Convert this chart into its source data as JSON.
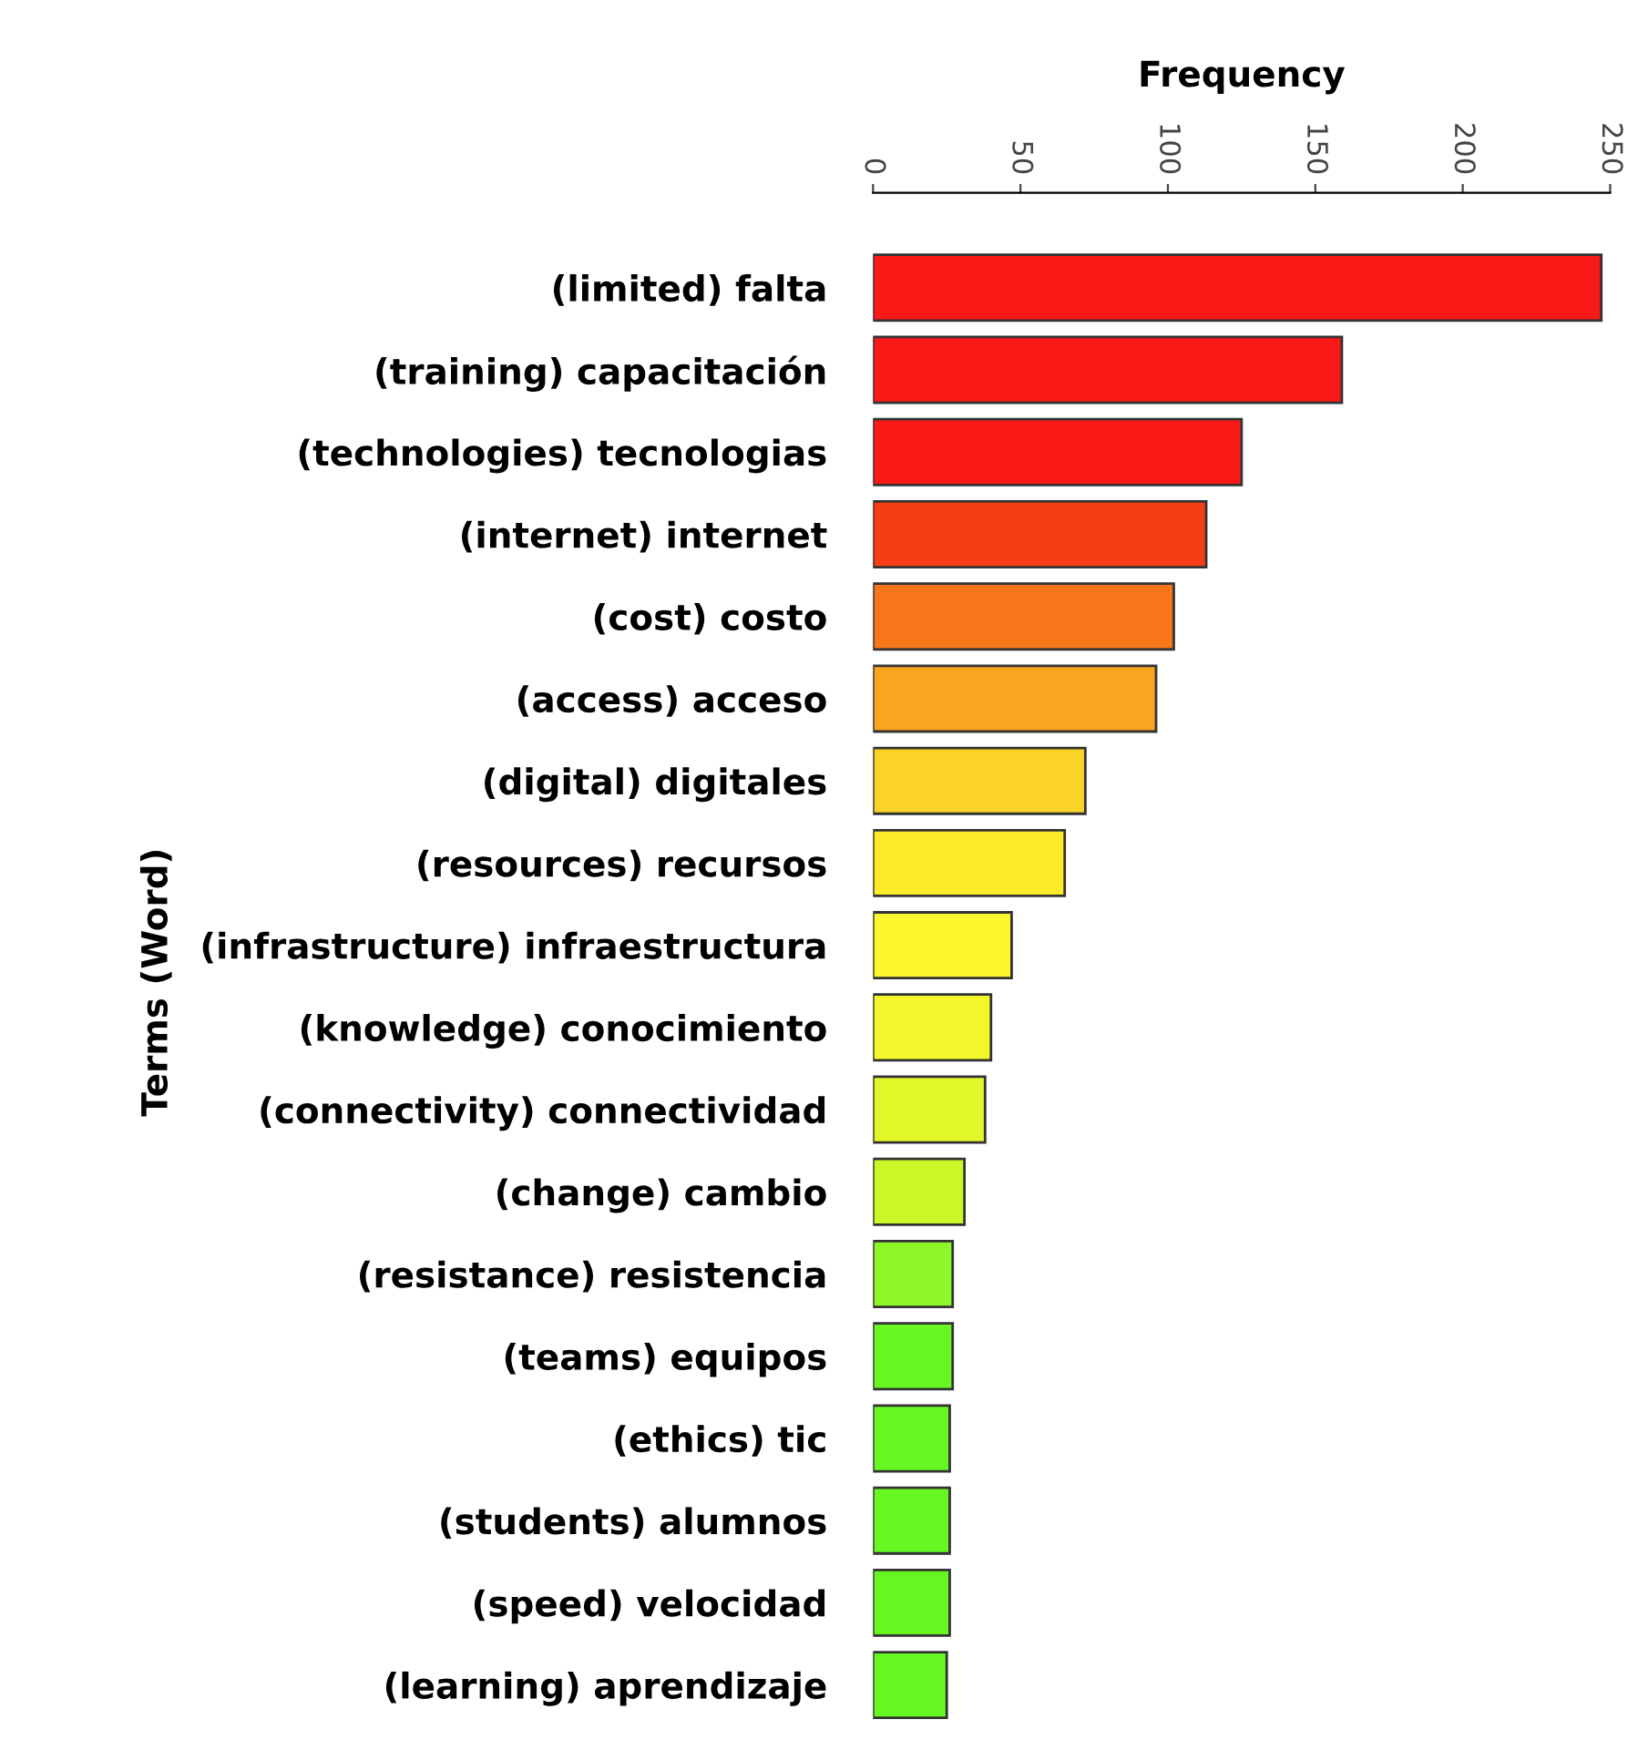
{
  "chart_data": {
    "type": "bar",
    "orientation": "horizontal",
    "xlabel": "Frequency",
    "ylabel": "Terms (Word)",
    "categories": [
      "(limited) falta",
      "(training) capacitación",
      "(technologies) tecnologias",
      "(internet) internet",
      "(cost) costo",
      "(access) acceso",
      "(digital) digitales",
      "(resources) recursos",
      "(infrastructure) infraestructura",
      "(knowledge) conocimiento",
      "(connectivity) connectividad",
      "(change) cambio",
      "(resistance) resistencia",
      "(teams) equipos",
      "(ethics) tic",
      "(students) alumnos",
      "(speed) velocidad",
      "(learning) aprendizaje"
    ],
    "values": [
      247,
      159,
      125,
      113,
      102,
      96,
      72,
      65,
      47,
      40,
      38,
      31,
      27,
      27,
      26,
      26,
      26,
      25
    ],
    "colors": [
      "#f91a17",
      "#f91a17",
      "#f91a17",
      "#f73d14",
      "#f7761a",
      "#f8a520",
      "#fbd226",
      "#fdea29",
      "#fdf72b",
      "#f4f72c",
      "#e2f82a",
      "#c9f826",
      "#8ef727",
      "#66f722",
      "#66f722",
      "#66f722",
      "#66f722",
      "#66f722"
    ],
    "xlim": [
      0,
      250
    ],
    "xticks": [
      0,
      50,
      100,
      150,
      200,
      250
    ],
    "grid": false,
    "legend": false
  }
}
